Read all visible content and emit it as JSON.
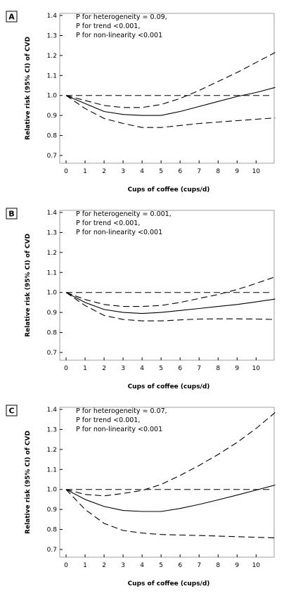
{
  "chart_data": [
    {
      "type": "line",
      "panel_label": "A",
      "annotations": [
        "P for heterogeneity = 0.09,",
        "P for trend <0.001,",
        "P for non-linearity <0.001"
      ],
      "xlabel": "Cups of coffee (cups/d)",
      "ylabel": "Relative risk (95% CI) of CVD",
      "xlim": [
        0,
        11
      ],
      "ylim": [
        0.7,
        1.4
      ],
      "x_ticks": [
        0,
        1,
        2,
        3,
        4,
        5,
        6,
        7,
        8,
        9,
        10
      ],
      "y_ticks": [
        0.7,
        0.8,
        0.9,
        1.0,
        1.1,
        1.2,
        1.3,
        1.4
      ],
      "reference_line": 1.0,
      "grid": false,
      "x": [
        0,
        1,
        2,
        3,
        4,
        5,
        6,
        7,
        8,
        9,
        10,
        11
      ],
      "series": [
        {
          "style": "solid",
          "values": [
            1.0,
            0.96,
            0.92,
            0.905,
            0.9,
            0.9,
            0.92,
            0.945,
            0.97,
            0.995,
            1.015,
            1.04
          ]
        },
        {
          "style": "dashed",
          "values": [
            1.0,
            0.975,
            0.95,
            0.94,
            0.94,
            0.955,
            0.985,
            1.025,
            1.07,
            1.115,
            1.165,
            1.215
          ]
        },
        {
          "style": "dashed",
          "values": [
            1.0,
            0.935,
            0.885,
            0.86,
            0.84,
            0.84,
            0.85,
            0.86,
            0.867,
            0.874,
            0.881,
            0.888
          ]
        }
      ]
    },
    {
      "type": "line",
      "panel_label": "B",
      "annotations": [
        "P for heterogeneity = 0.001,",
        "P for trend <0.001,",
        "P for non-linearity <0.001"
      ],
      "xlabel": "Cups of coffee (cups/d)",
      "ylabel": "Relative risk (95% CI) of CVD",
      "xlim": [
        0,
        11
      ],
      "ylim": [
        0.7,
        1.4
      ],
      "x_ticks": [
        0,
        1,
        2,
        3,
        4,
        5,
        6,
        7,
        8,
        9,
        10
      ],
      "y_ticks": [
        0.7,
        0.8,
        0.9,
        1.0,
        1.1,
        1.2,
        1.3,
        1.4
      ],
      "reference_line": 1.0,
      "grid": false,
      "x": [
        0,
        1,
        2,
        3,
        4,
        5,
        6,
        7,
        8,
        9,
        10,
        11
      ],
      "series": [
        {
          "style": "solid",
          "values": [
            1.0,
            0.95,
            0.915,
            0.9,
            0.895,
            0.9,
            0.91,
            0.92,
            0.93,
            0.94,
            0.953,
            0.967
          ]
        },
        {
          "style": "dashed",
          "values": [
            1.0,
            0.965,
            0.94,
            0.93,
            0.93,
            0.935,
            0.95,
            0.97,
            0.99,
            1.015,
            1.045,
            1.078
          ]
        },
        {
          "style": "dashed",
          "values": [
            1.0,
            0.935,
            0.885,
            0.865,
            0.858,
            0.858,
            0.863,
            0.867,
            0.868,
            0.868,
            0.867,
            0.865
          ]
        }
      ]
    },
    {
      "type": "line",
      "panel_label": "C",
      "annotations": [
        "P for heterogeneity = 0.07,",
        "P for trend <0.001,",
        "P for non-linearity <0.001"
      ],
      "xlabel": "Cups of coffee (cups/d)",
      "ylabel": "Relative risk (95% CI) of CVD",
      "xlim": [
        0,
        11
      ],
      "ylim": [
        0.7,
        1.4
      ],
      "x_ticks": [
        0,
        1,
        2,
        3,
        4,
        5,
        6,
        7,
        8,
        9,
        10
      ],
      "y_ticks": [
        0.7,
        0.8,
        0.9,
        1.0,
        1.1,
        1.2,
        1.3,
        1.4
      ],
      "reference_line": 1.0,
      "grid": false,
      "x": [
        0,
        1,
        2,
        3,
        4,
        5,
        6,
        7,
        8,
        9,
        10,
        11
      ],
      "series": [
        {
          "style": "solid",
          "values": [
            1.0,
            0.95,
            0.915,
            0.895,
            0.89,
            0.89,
            0.905,
            0.925,
            0.948,
            0.972,
            0.997,
            1.022
          ]
        },
        {
          "style": "dashed",
          "values": [
            1.0,
            0.975,
            0.968,
            0.98,
            0.995,
            1.025,
            1.07,
            1.12,
            1.175,
            1.235,
            1.305,
            1.385
          ]
        },
        {
          "style": "dashed",
          "values": [
            1.0,
            0.9,
            0.83,
            0.795,
            0.782,
            0.775,
            0.772,
            0.77,
            0.767,
            0.764,
            0.761,
            0.758
          ]
        }
      ]
    }
  ]
}
